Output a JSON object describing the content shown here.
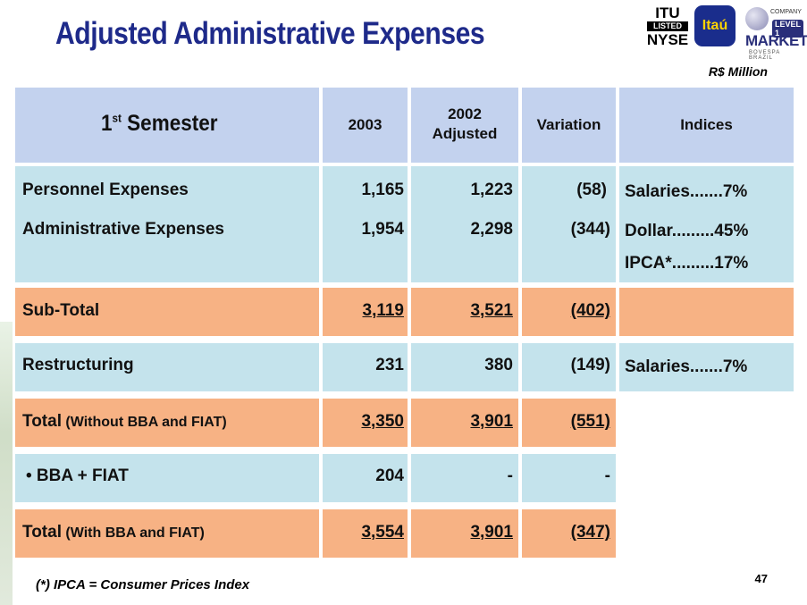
{
  "title": "Adjusted Administrative Expenses",
  "units": "R$ Million",
  "logos": {
    "nyse_top": "ITU",
    "nyse_listed": "LISTED",
    "nyse_bottom": "NYSE",
    "itau": "Itaú",
    "level_company": "COMPANY",
    "level_text": "LEVEL 1",
    "level_market": "MARKET",
    "level_bovespa": "BOVESPA BRAZIL"
  },
  "header": {
    "semester_main": "1",
    "semester_sup": "st",
    "semester_rest": " Semester",
    "col_2003": "2003",
    "col_2002_line1": "2002",
    "col_2002_line2": "Adjusted",
    "col_variation": "Variation",
    "col_indices": "Indices"
  },
  "rows": {
    "personnel": {
      "label": "Personnel Expenses",
      "v2003": "1,165",
      "v2002": "1,223",
      "var": "(58)"
    },
    "administrative": {
      "label": "Administrative Expenses",
      "v2003": "1,954",
      "v2002": "2,298",
      "var": "(344)"
    },
    "subtotal": {
      "label": "Sub-Total",
      "v2003": "3,119",
      "v2002": "3,521",
      "var": "(402)"
    },
    "restructuring": {
      "label": "Restructuring",
      "v2003": "231",
      "v2002": "380",
      "var": "(149)"
    },
    "total_without": {
      "label_main": "Total",
      "label_rest": " (Without BBA and FIAT)",
      "v2003": "3,350",
      "v2002": "3,901",
      "var": "(551)"
    },
    "bba_fiat": {
      "label": "• BBA + FIAT",
      "v2003": "204",
      "v2002": "-",
      "var": "-"
    },
    "total_with": {
      "label_main": "Total",
      "label_rest": " (With BBA and FIAT)",
      "v2003": "3,554",
      "v2002": "3,901",
      "var": "(347)"
    }
  },
  "indices": {
    "salaries": "Salaries.......7%",
    "dollar": "Dollar.........45%",
    "ipca": "IPCA*.........17%",
    "restructuring_salaries": "Salaries.......7%"
  },
  "footnote": "(*) IPCA = Consumer Prices Index",
  "page_number": "47",
  "colors": {
    "title": "#1e2a8a",
    "header_bg": "#c3d2ee",
    "light_row_bg": "#c4e3ec",
    "orange_row_bg": "#f7b284"
  }
}
